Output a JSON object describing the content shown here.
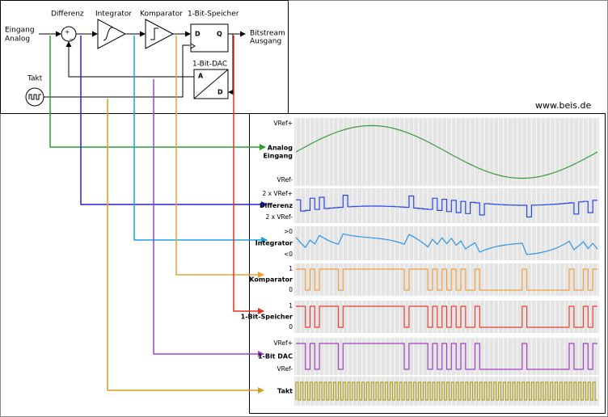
{
  "diagram": {
    "input": [
      "Eingang",
      "Analog"
    ],
    "blocks": {
      "difference": "Differenz",
      "integrator": "Integrator",
      "comparator": "Komparator",
      "latch": "1-Bit-Speicher",
      "dac": "1-Bit-DAC",
      "clock": "Takt"
    },
    "latch_pins": [
      "D",
      "Q"
    ],
    "dac_pins": [
      "A",
      "D"
    ],
    "output": [
      "Bitstream",
      "Ausgang"
    ],
    "signs": [
      "+",
      "_"
    ]
  },
  "website": "www.beis.de",
  "panels": [
    {
      "name": [
        "Analog",
        "Eingang"
      ],
      "top": "VRef+",
      "bottom": "VRef-"
    },
    {
      "name": [
        "Differenz"
      ],
      "top": "2 x VRef+",
      "bottom": "2 x VRef-"
    },
    {
      "name": [
        "Integrator"
      ],
      "top": ">0",
      "bottom": "<0"
    },
    {
      "name": [
        "Komparator"
      ],
      "top": "1",
      "bottom": "0"
    },
    {
      "name": [
        "1-Bit-Speicher"
      ],
      "top": "1",
      "bottom": "0"
    },
    {
      "name": [
        "1-Bit DAC"
      ],
      "top": "VRef+",
      "bottom": "VRef-"
    },
    {
      "name": [
        "Takt"
      ]
    }
  ]
}
